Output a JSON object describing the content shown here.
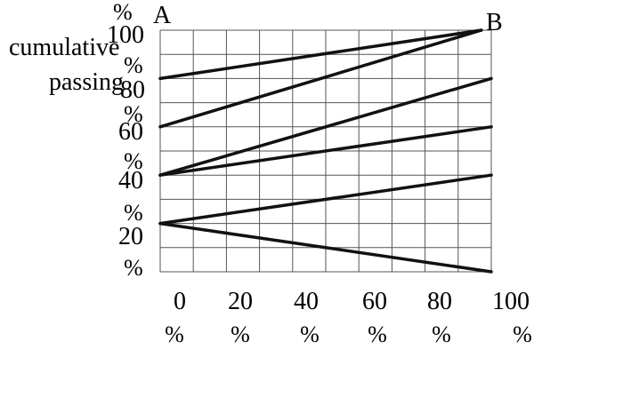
{
  "chart_data": {
    "type": "line",
    "title": "",
    "ylabel_lines": [
      "cumulative",
      "passing"
    ],
    "xlim": [
      0,
      100
    ],
    "ylim": [
      0,
      100
    ],
    "grid": true,
    "x_ticks": [
      {
        "value": 0,
        "number": "0",
        "unit": "%"
      },
      {
        "value": 20,
        "number": "20",
        "unit": "%"
      },
      {
        "value": 40,
        "number": "40",
        "unit": "%"
      },
      {
        "value": 60,
        "number": "60",
        "unit": "%"
      },
      {
        "value": 80,
        "number": "80",
        "unit": "%"
      },
      {
        "value": 100,
        "number": "100",
        "unit": "%"
      }
    ],
    "y_ticks": [
      {
        "value": 100,
        "number": "100",
        "unit": "%"
      },
      {
        "value": 80,
        "number": "80",
        "unit": "%"
      },
      {
        "value": 60,
        "number": "60",
        "unit": "%"
      },
      {
        "value": 40,
        "number": "40",
        "unit": "%"
      },
      {
        "value": 20,
        "number": "20",
        "unit": "%"
      }
    ],
    "y_bottom_unit": "%",
    "points": [
      {
        "label": "A",
        "x": 0,
        "y": 100
      },
      {
        "label": "B",
        "x": 97,
        "y": 100
      }
    ],
    "series": [
      {
        "x": [
          0,
          97
        ],
        "y": [
          80,
          100
        ]
      },
      {
        "x": [
          0,
          97
        ],
        "y": [
          60,
          100
        ]
      },
      {
        "x": [
          0,
          100
        ],
        "y": [
          40,
          80
        ]
      },
      {
        "x": [
          0,
          100
        ],
        "y": [
          40,
          60
        ]
      },
      {
        "x": [
          0,
          100
        ],
        "y": [
          20,
          40
        ]
      },
      {
        "x": [
          0,
          100
        ],
        "y": [
          20,
          0
        ]
      }
    ]
  }
}
